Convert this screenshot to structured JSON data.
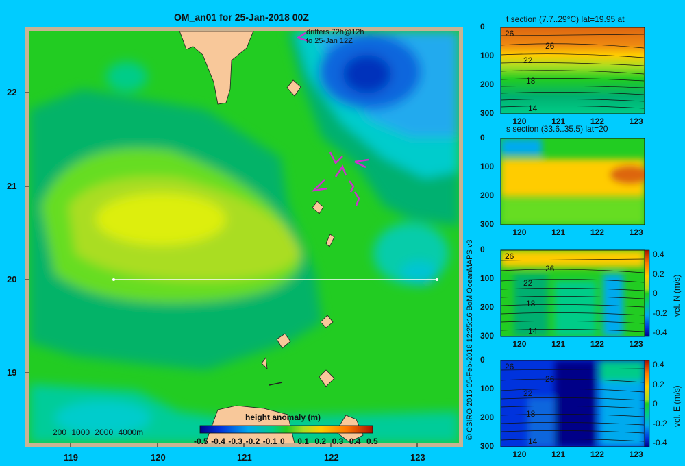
{
  "main_title": "OM_an01 for 25-Jan-2018 00Z",
  "drifters": {
    "line1": "drifters 72h@12h",
    "line2": "to 25-Jan 12Z"
  },
  "map": {
    "x_ticks": [
      "119",
      "120",
      "121",
      "122",
      "123"
    ],
    "y_ticks": [
      "22",
      "21",
      "20",
      "19"
    ],
    "depth_legend": [
      "200",
      "1000",
      "2000",
      "4000m"
    ],
    "colorbar_title": "height anomaly (m)",
    "colorbar_ticks": [
      "-0.5",
      "-0.4",
      "-0.3",
      "-0.2",
      "-0.1",
      "0",
      "0.1",
      "0.2",
      "0.3",
      "0.4",
      "0.5"
    ],
    "colors": {
      "land": "#f8c89a",
      "section_line": "#ffffff",
      "drifter": "#cc33cc"
    }
  },
  "credit": "© CSIRO 2016   05-Feb-2018 12:25:16 BoM OceanMAPS v3",
  "sections": [
    {
      "id": "t",
      "title": "t section (7.7..29°C) lat=19.95 at",
      "x_ticks": [
        "120",
        "121",
        "122",
        "123"
      ],
      "y_ticks": [
        "0",
        "100",
        "200",
        "300"
      ],
      "contour_labels": [
        "26",
        "26",
        "22",
        "18",
        "14"
      ]
    },
    {
      "id": "s",
      "title": "s section (33.6..35.5) lat=20",
      "x_ticks": [
        "120",
        "121",
        "122",
        "123"
      ],
      "y_ticks": [
        "0",
        "100",
        "200",
        "300"
      ],
      "contour_labels": []
    },
    {
      "id": "n",
      "title": "",
      "x_ticks": [
        "120",
        "121",
        "122",
        "123"
      ],
      "y_ticks": [
        "0",
        "100",
        "200",
        "300"
      ],
      "contour_labels": [
        "26",
        "26",
        "22",
        "18",
        "14"
      ],
      "colorbar_label": "vel. N (m/s)",
      "colorbar_ticks": [
        "0.4",
        "0.2",
        "0",
        "-0.2",
        "-0.4"
      ]
    },
    {
      "id": "e",
      "title": "",
      "x_ticks": [
        "120",
        "121",
        "122",
        "123"
      ],
      "y_ticks": [
        "0",
        "100",
        "200",
        "300"
      ],
      "contour_labels": [
        "26",
        "26",
        "22",
        "18",
        "14"
      ],
      "colorbar_label": "vel. E (m/s)",
      "colorbar_ticks": [
        "0.4",
        "0.2",
        "0",
        "-0.2",
        "-0.4"
      ]
    }
  ],
  "chart_data": [
    {
      "type": "heatmap",
      "title": "OM_an01 for 25-Jan-2018 00Z",
      "xlabel": "",
      "ylabel": "",
      "xlim": [
        118.5,
        123.5
      ],
      "ylim": [
        18.3,
        22.7
      ],
      "x_ticks": [
        119,
        120,
        121,
        122,
        123
      ],
      "y_ticks": [
        19,
        20,
        21,
        22
      ],
      "colorbar": {
        "title": "height anomaly (m)",
        "range": [
          -0.5,
          0.5
        ]
      },
      "features": [
        {
          "kind": "high",
          "lon": 120.3,
          "lat": 20.7,
          "value": 0.15
        },
        {
          "kind": "low",
          "lon": 122.4,
          "lat": 22.2,
          "value": -0.35
        },
        {
          "kind": "low",
          "lon": 123.0,
          "lat": 20.05,
          "value": -0.15
        }
      ],
      "section_line": {
        "lon": [
          119.5,
          123.2
        ],
        "lat": [
          20.0,
          20.0
        ]
      }
    },
    {
      "type": "heatmap",
      "title": "t section (7.7..29°C) lat=19.95 at",
      "xlim": [
        119.5,
        123.2
      ],
      "ylim": [
        300,
        0
      ],
      "x_ticks": [
        120,
        121,
        122,
        123
      ],
      "y_ticks": [
        0,
        100,
        200,
        300
      ],
      "contour_levels": [
        26,
        22,
        18,
        14
      ]
    },
    {
      "type": "heatmap",
      "title": "s section (33.6..35.5) lat=20",
      "xlim": [
        119.5,
        123.2
      ],
      "ylim": [
        300,
        0
      ],
      "x_ticks": [
        120,
        121,
        122,
        123
      ],
      "y_ticks": [
        0,
        100,
        200,
        300
      ]
    },
    {
      "type": "heatmap",
      "title": "",
      "xlim": [
        119.5,
        123.2
      ],
      "ylim": [
        300,
        0
      ],
      "x_ticks": [
        120,
        121,
        122,
        123
      ],
      "y_ticks": [
        0,
        100,
        200,
        300
      ],
      "colorbar": {
        "title": "vel. N (m/s)",
        "range": [
          -0.4,
          0.4
        ]
      },
      "contour_levels": [
        26,
        22,
        18,
        14
      ]
    },
    {
      "type": "heatmap",
      "title": "",
      "xlim": [
        119.5,
        123.2
      ],
      "ylim": [
        300,
        0
      ],
      "x_ticks": [
        120,
        121,
        122,
        123
      ],
      "y_ticks": [
        0,
        100,
        200,
        300
      ],
      "colorbar": {
        "title": "vel. E (m/s)",
        "range": [
          -0.4,
          0.4
        ]
      },
      "contour_levels": [
        26,
        22,
        18,
        14
      ]
    }
  ]
}
